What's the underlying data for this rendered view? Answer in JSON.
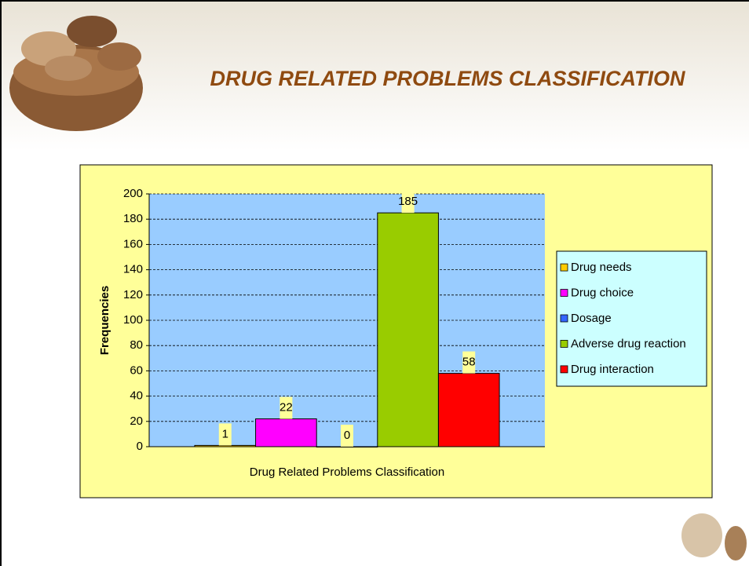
{
  "slide": {
    "title": "DRUG RELATED PROBLEMS CLASSIFICATION"
  },
  "chart_data": {
    "type": "bar",
    "categories": [
      "Drug Related Problems Classification"
    ],
    "ylabel": "Frequencies",
    "series": [
      {
        "name": "Drug needs",
        "color": "#ffcc00",
        "values": [
          1
        ]
      },
      {
        "name": "Drug choice",
        "color": "#ff00ff",
        "values": [
          22
        ]
      },
      {
        "name": "Dosage",
        "color": "#3366ff",
        "values": [
          0
        ]
      },
      {
        "name": "Adverse drug reaction",
        "color": "#99cc00",
        "values": [
          185
        ]
      },
      {
        "name": "Drug interaction",
        "color": "#ff0000",
        "values": [
          58
        ]
      }
    ],
    "ylim": [
      0,
      200
    ],
    "yticks": [
      0,
      20,
      40,
      60,
      80,
      100,
      120,
      140,
      160,
      180,
      200
    ],
    "grid": true,
    "legend": "right"
  }
}
